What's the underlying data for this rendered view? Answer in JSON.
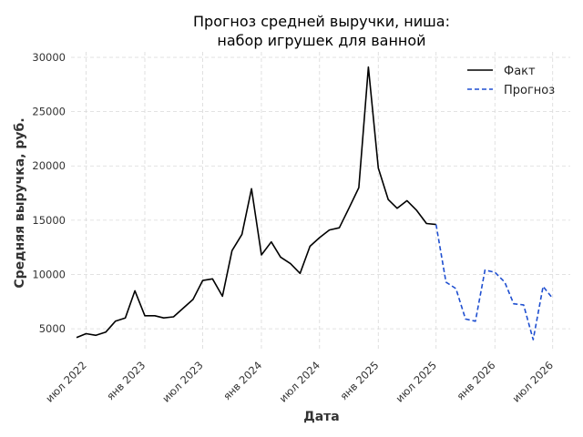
{
  "chart_data": {
    "type": "line",
    "title": [
      "Прогноз средней выручки, ниша:",
      "набор игрушек для ванной"
    ],
    "xlabel": "Дата",
    "ylabel": "Средняя выручка, руб.",
    "grid": true,
    "legend_position": "top-right",
    "ylim": [
      3000,
      30500
    ],
    "xlim": [
      "2022-05-15",
      "2026-08-25"
    ],
    "y_ticks": [
      5000,
      10000,
      15000,
      20000,
      25000,
      30000
    ],
    "x_ticks": [
      {
        "date": "2022-07-01",
        "label": "июл 2022"
      },
      {
        "date": "2023-01-01",
        "label": "янв 2023"
      },
      {
        "date": "2023-07-01",
        "label": "июл 2023"
      },
      {
        "date": "2024-01-01",
        "label": "янв 2024"
      },
      {
        "date": "2024-07-01",
        "label": "июл 2024"
      },
      {
        "date": "2025-01-01",
        "label": "янв 2025"
      },
      {
        "date": "2025-07-01",
        "label": "июл 2025"
      },
      {
        "date": "2026-01-01",
        "label": "янв 2026"
      },
      {
        "date": "2026-07-01",
        "label": "июл 2026"
      }
    ],
    "series": [
      {
        "name": "Факт",
        "color": "#000000",
        "style": "solid",
        "points": [
          [
            "2022-06-01",
            4200
          ],
          [
            "2022-07-01",
            4550
          ],
          [
            "2022-08-01",
            4400
          ],
          [
            "2022-09-01",
            4700
          ],
          [
            "2022-10-01",
            5700
          ],
          [
            "2022-11-01",
            6000
          ],
          [
            "2022-12-01",
            8500
          ],
          [
            "2023-01-01",
            6200
          ],
          [
            "2023-02-01",
            6200
          ],
          [
            "2023-03-01",
            6000
          ],
          [
            "2023-04-01",
            6100
          ],
          [
            "2023-05-01",
            6900
          ],
          [
            "2023-06-01",
            7700
          ],
          [
            "2023-07-01",
            9450
          ],
          [
            "2023-08-01",
            9600
          ],
          [
            "2023-09-01",
            8000
          ],
          [
            "2023-10-01",
            12200
          ],
          [
            "2023-11-01",
            13700
          ],
          [
            "2023-12-01",
            17900
          ],
          [
            "2024-01-01",
            11800
          ],
          [
            "2024-02-01",
            13000
          ],
          [
            "2024-03-01",
            11600
          ],
          [
            "2024-04-01",
            11000
          ],
          [
            "2024-05-01",
            10100
          ],
          [
            "2024-06-01",
            12600
          ],
          [
            "2024-07-01",
            13400
          ],
          [
            "2024-08-01",
            14100
          ],
          [
            "2024-09-01",
            14300
          ],
          [
            "2024-10-01",
            16100
          ],
          [
            "2024-11-01",
            18000
          ],
          [
            "2024-12-01",
            29100
          ],
          [
            "2025-01-01",
            19800
          ],
          [
            "2025-02-01",
            16900
          ],
          [
            "2025-03-01",
            16100
          ],
          [
            "2025-04-01",
            16800
          ],
          [
            "2025-05-01",
            15900
          ],
          [
            "2025-06-01",
            14700
          ],
          [
            "2025-07-01",
            14600
          ]
        ]
      },
      {
        "name": "Прогноз",
        "color": "#1f4fd0",
        "style": "dashed",
        "points": [
          [
            "2025-07-01",
            14600
          ],
          [
            "2025-08-01",
            9300
          ],
          [
            "2025-09-01",
            8700
          ],
          [
            "2025-10-01",
            5900
          ],
          [
            "2025-11-01",
            5700
          ],
          [
            "2025-12-01",
            10400
          ],
          [
            "2026-01-01",
            10200
          ],
          [
            "2026-02-01",
            9300
          ],
          [
            "2026-03-01",
            7300
          ],
          [
            "2026-04-01",
            7200
          ],
          [
            "2026-05-01",
            4000
          ],
          [
            "2026-06-01",
            8900
          ],
          [
            "2026-07-01",
            7800
          ]
        ]
      }
    ]
  }
}
